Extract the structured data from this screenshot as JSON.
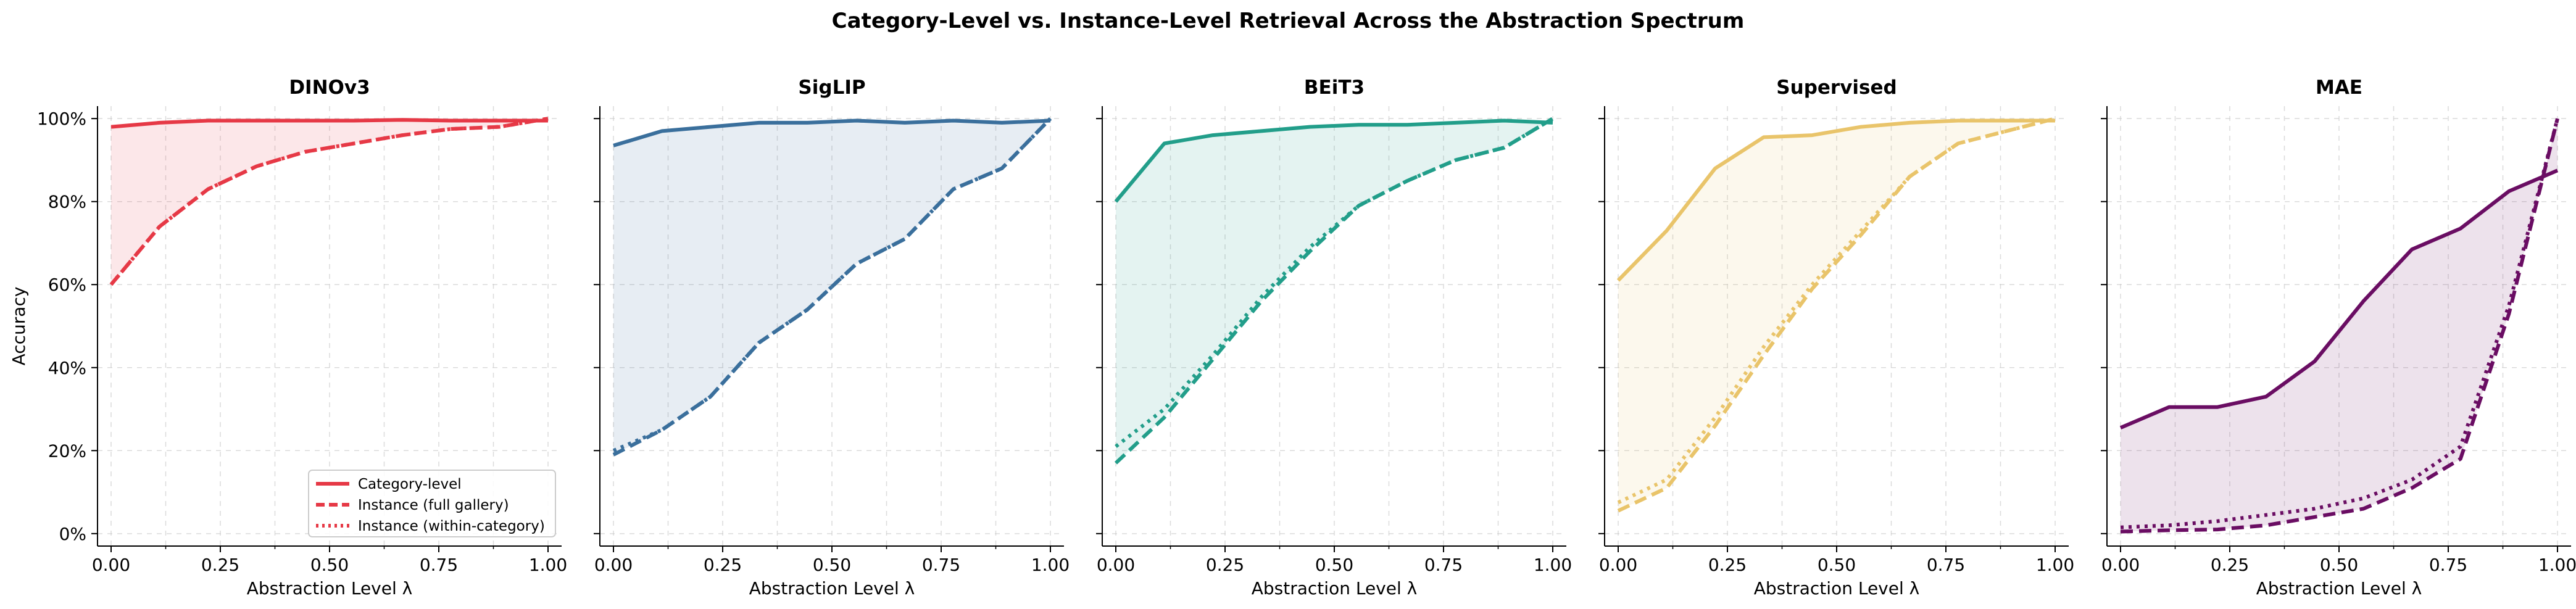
{
  "figure": {
    "title": "Category-Level vs. Instance-Level Retrieval Across the Abstraction Spectrum"
  },
  "chart_data": [
    {
      "type": "line",
      "title": "DINOv3",
      "color": "#e63946",
      "xlabel": "Abstraction Level λ",
      "ylabel": "Accuracy",
      "xlim": [
        0,
        1
      ],
      "ylim": [
        -0.03,
        1.03
      ],
      "xticks": [
        "0.00",
        "0.25",
        "0.50",
        "0.75",
        "1.00"
      ],
      "yticks": [
        "0%",
        "20%",
        "40%",
        "60%",
        "80%",
        "100%"
      ],
      "grid": true,
      "legend": {
        "placement": "lower-right",
        "entries": [
          "Category-level",
          "Instance (full gallery)",
          "Instance (within-category)"
        ]
      },
      "x": [
        0,
        0.111,
        0.222,
        0.333,
        0.444,
        0.556,
        0.667,
        0.778,
        0.889,
        1.0
      ],
      "series": [
        {
          "values": [
            0.98,
            0.99,
            0.995,
            0.995,
            0.995,
            0.995,
            0.997,
            0.995,
            0.995,
            0.995
          ]
        },
        {
          "values": [
            0.6,
            0.74,
            0.83,
            0.885,
            0.92,
            0.94,
            0.96,
            0.975,
            0.98,
            1.0
          ]
        },
        {
          "values": [
            0.6,
            0.74,
            0.83,
            0.885,
            0.92,
            0.94,
            0.96,
            0.975,
            0.98,
            1.0
          ]
        }
      ]
    },
    {
      "type": "line",
      "title": "SigLIP",
      "color": "#3a6f9c",
      "xlabel": "Abstraction Level λ",
      "xlim": [
        0,
        1
      ],
      "ylim": [
        -0.03,
        1.03
      ],
      "xticks": [
        "0.00",
        "0.25",
        "0.50",
        "0.75",
        "1.00"
      ],
      "grid": true,
      "x": [
        0,
        0.111,
        0.222,
        0.333,
        0.444,
        0.556,
        0.667,
        0.778,
        0.889,
        1.0
      ],
      "series": [
        {
          "values": [
            0.935,
            0.97,
            0.98,
            0.99,
            0.99,
            0.995,
            0.99,
            0.995,
            0.99,
            0.995
          ]
        },
        {
          "values": [
            0.19,
            0.25,
            0.33,
            0.46,
            0.54,
            0.65,
            0.71,
            0.83,
            0.88,
            1.0
          ]
        },
        {
          "values": [
            0.2,
            0.25,
            0.33,
            0.46,
            0.54,
            0.65,
            0.71,
            0.83,
            0.88,
            1.0
          ]
        }
      ]
    },
    {
      "type": "line",
      "title": "BEiT3",
      "color": "#229e8a",
      "xlabel": "Abstraction Level λ",
      "xlim": [
        0,
        1
      ],
      "ylim": [
        -0.03,
        1.03
      ],
      "xticks": [
        "0.00",
        "0.25",
        "0.50",
        "0.75",
        "1.00"
      ],
      "grid": true,
      "x": [
        0,
        0.111,
        0.222,
        0.333,
        0.444,
        0.556,
        0.667,
        0.778,
        0.889,
        1.0
      ],
      "series": [
        {
          "values": [
            0.8,
            0.94,
            0.96,
            0.97,
            0.98,
            0.985,
            0.985,
            0.99,
            0.995,
            0.99
          ]
        },
        {
          "values": [
            0.17,
            0.28,
            0.42,
            0.56,
            0.68,
            0.79,
            0.85,
            0.9,
            0.93,
            1.0
          ]
        },
        {
          "values": [
            0.21,
            0.3,
            0.43,
            0.57,
            0.69,
            0.79,
            0.85,
            0.9,
            0.93,
            1.0
          ]
        }
      ]
    },
    {
      "type": "line",
      "title": "Supervised",
      "color": "#e9c46a",
      "xlabel": "Abstraction Level λ",
      "xlim": [
        0,
        1
      ],
      "ylim": [
        -0.03,
        1.03
      ],
      "xticks": [
        "0.00",
        "0.25",
        "0.50",
        "0.75",
        "1.00"
      ],
      "grid": true,
      "x": [
        0,
        0.111,
        0.222,
        0.333,
        0.444,
        0.556,
        0.667,
        0.778,
        0.889,
        1.0
      ],
      "series": [
        {
          "values": [
            0.61,
            0.73,
            0.88,
            0.955,
            0.96,
            0.98,
            0.99,
            0.995,
            0.995,
            0.995
          ]
        },
        {
          "values": [
            0.055,
            0.11,
            0.26,
            0.43,
            0.59,
            0.72,
            0.86,
            0.94,
            0.97,
            1.0
          ]
        },
        {
          "values": [
            0.075,
            0.13,
            0.28,
            0.45,
            0.6,
            0.73,
            0.86,
            0.94,
            0.97,
            1.0
          ]
        }
      ]
    },
    {
      "type": "line",
      "title": "MAE",
      "color": "#6a0d63",
      "xlabel": "Abstraction Level λ",
      "xlim": [
        0,
        1
      ],
      "ylim": [
        -0.03,
        1.03
      ],
      "xticks": [
        "0.00",
        "0.25",
        "0.50",
        "0.75",
        "1.00"
      ],
      "grid": true,
      "x": [
        0,
        0.111,
        0.222,
        0.333,
        0.444,
        0.556,
        0.667,
        0.778,
        0.889,
        1.0
      ],
      "series": [
        {
          "values": [
            0.255,
            0.305,
            0.305,
            0.33,
            0.415,
            0.56,
            0.685,
            0.735,
            0.825,
            0.875
          ]
        },
        {
          "values": [
            0.005,
            0.008,
            0.01,
            0.02,
            0.04,
            0.06,
            0.11,
            0.18,
            0.53,
            1.0
          ]
        },
        {
          "values": [
            0.015,
            0.02,
            0.03,
            0.045,
            0.06,
            0.085,
            0.13,
            0.21,
            0.55,
            1.0
          ]
        }
      ]
    }
  ]
}
